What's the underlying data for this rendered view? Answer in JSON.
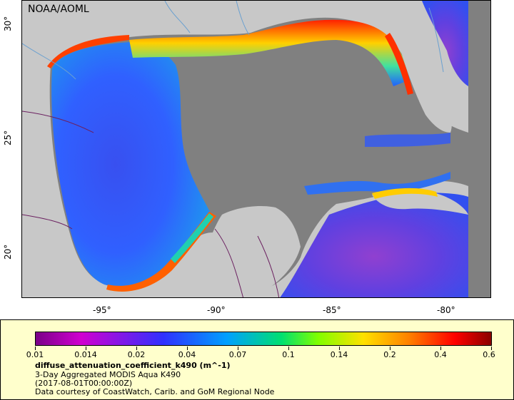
{
  "map": {
    "credit": "NOAA/AOML",
    "lat_labels": [
      "30°",
      "25°",
      "20°"
    ],
    "lon_labels": [
      "-95°",
      "-90°",
      "-85°",
      "-80°"
    ],
    "colors": {
      "land": "#c8c8c8",
      "no_data": "#808080",
      "borders": "#6b2060",
      "rivers": "#6aa0d0"
    }
  },
  "legend": {
    "colorbar_ticks": [
      "0.01",
      "0.014",
      "0.02",
      "0.04",
      "0.07",
      "0.1",
      "0.14",
      "0.2",
      "0.4",
      "0.6"
    ],
    "variable": "diffuse_attenuation_coefficient_k490 (m^-1)",
    "product": "3-Day Aggregated MODIS Aqua K490",
    "time": "(2017-08-01T00:00:00Z)",
    "source": "Data courtesy of CoastWatch, Carib. and GoM Regional Node"
  }
}
